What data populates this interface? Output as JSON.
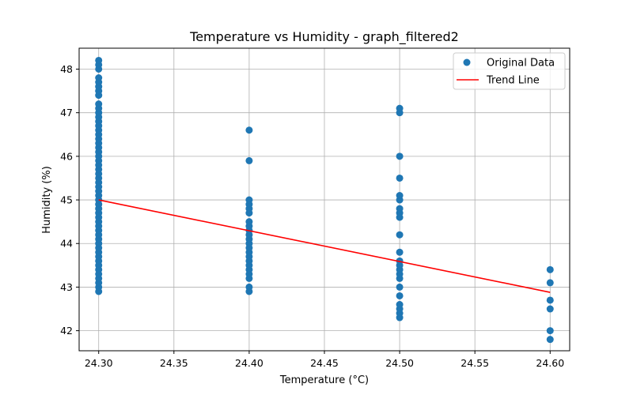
{
  "chart_data": {
    "type": "scatter",
    "title": "Temperature vs Humidity - graph_filtered2",
    "xlabel": "Temperature (°C)",
    "ylabel": "Humidity (%)",
    "xlim": [
      24.287,
      24.613
    ],
    "ylim": [
      41.54,
      48.48
    ],
    "grid": true,
    "legend_position": "top-right",
    "xticks": [
      "24.30",
      "24.35",
      "24.40",
      "24.45",
      "24.50",
      "24.55",
      "24.60"
    ],
    "xtick_values": [
      24.3,
      24.35,
      24.4,
      24.45,
      24.5,
      24.55,
      24.6
    ],
    "yticks": [
      "42",
      "43",
      "44",
      "45",
      "46",
      "47",
      "48"
    ],
    "ytick_values": [
      42,
      43,
      44,
      45,
      46,
      47,
      48
    ],
    "series": [
      {
        "name": "Original Data",
        "kind": "scatter",
        "color": "#1f77b4",
        "points": [
          [
            24.3,
            42.9
          ],
          [
            24.3,
            43.0
          ],
          [
            24.3,
            43.1
          ],
          [
            24.3,
            43.2
          ],
          [
            24.3,
            43.3
          ],
          [
            24.3,
            43.4
          ],
          [
            24.3,
            43.5
          ],
          [
            24.3,
            43.6
          ],
          [
            24.3,
            43.7
          ],
          [
            24.3,
            43.8
          ],
          [
            24.3,
            43.9
          ],
          [
            24.3,
            44.0
          ],
          [
            24.3,
            44.1
          ],
          [
            24.3,
            44.2
          ],
          [
            24.3,
            44.3
          ],
          [
            24.3,
            44.4
          ],
          [
            24.3,
            44.5
          ],
          [
            24.3,
            44.6
          ],
          [
            24.3,
            44.7
          ],
          [
            24.3,
            44.8
          ],
          [
            24.3,
            44.9
          ],
          [
            24.3,
            45.0
          ],
          [
            24.3,
            45.1
          ],
          [
            24.3,
            45.2
          ],
          [
            24.3,
            45.3
          ],
          [
            24.3,
            45.4
          ],
          [
            24.3,
            45.5
          ],
          [
            24.3,
            45.6
          ],
          [
            24.3,
            45.7
          ],
          [
            24.3,
            45.8
          ],
          [
            24.3,
            45.9
          ],
          [
            24.3,
            46.0
          ],
          [
            24.3,
            46.1
          ],
          [
            24.3,
            46.2
          ],
          [
            24.3,
            46.3
          ],
          [
            24.3,
            46.4
          ],
          [
            24.3,
            46.5
          ],
          [
            24.3,
            46.6
          ],
          [
            24.3,
            46.7
          ],
          [
            24.3,
            46.8
          ],
          [
            24.3,
            46.9
          ],
          [
            24.3,
            47.0
          ],
          [
            24.3,
            47.1
          ],
          [
            24.3,
            47.2
          ],
          [
            24.3,
            47.4
          ],
          [
            24.3,
            47.5
          ],
          [
            24.3,
            47.6
          ],
          [
            24.3,
            47.7
          ],
          [
            24.3,
            47.8
          ],
          [
            24.3,
            48.0
          ],
          [
            24.3,
            48.1
          ],
          [
            24.3,
            48.2
          ],
          [
            24.4,
            42.9
          ],
          [
            24.4,
            43.0
          ],
          [
            24.4,
            43.2
          ],
          [
            24.4,
            43.3
          ],
          [
            24.4,
            43.4
          ],
          [
            24.4,
            43.5
          ],
          [
            24.4,
            43.6
          ],
          [
            24.4,
            43.7
          ],
          [
            24.4,
            43.8
          ],
          [
            24.4,
            43.9
          ],
          [
            24.4,
            44.0
          ],
          [
            24.4,
            44.1
          ],
          [
            24.4,
            44.2
          ],
          [
            24.4,
            44.3
          ],
          [
            24.4,
            44.4
          ],
          [
            24.4,
            44.5
          ],
          [
            24.4,
            44.7
          ],
          [
            24.4,
            44.8
          ],
          [
            24.4,
            44.9
          ],
          [
            24.4,
            45.0
          ],
          [
            24.4,
            45.9
          ],
          [
            24.4,
            46.6
          ],
          [
            24.5,
            42.3
          ],
          [
            24.5,
            42.4
          ],
          [
            24.5,
            42.5
          ],
          [
            24.5,
            42.6
          ],
          [
            24.5,
            42.8
          ],
          [
            24.5,
            43.0
          ],
          [
            24.5,
            43.2
          ],
          [
            24.5,
            43.3
          ],
          [
            24.5,
            43.4
          ],
          [
            24.5,
            43.5
          ],
          [
            24.5,
            43.6
          ],
          [
            24.5,
            43.8
          ],
          [
            24.5,
            44.2
          ],
          [
            24.5,
            44.6
          ],
          [
            24.5,
            44.7
          ],
          [
            24.5,
            44.8
          ],
          [
            24.5,
            45.0
          ],
          [
            24.5,
            45.1
          ],
          [
            24.5,
            45.5
          ],
          [
            24.5,
            46.0
          ],
          [
            24.5,
            47.0
          ],
          [
            24.5,
            47.1
          ],
          [
            24.6,
            41.8
          ],
          [
            24.6,
            42.0
          ],
          [
            24.6,
            42.5
          ],
          [
            24.6,
            42.7
          ],
          [
            24.6,
            43.1
          ],
          [
            24.6,
            43.4
          ]
        ]
      },
      {
        "name": "Trend Line",
        "kind": "line",
        "color": "#ff0000",
        "points": [
          [
            24.3,
            45.0
          ],
          [
            24.6,
            42.88
          ]
        ]
      }
    ]
  }
}
